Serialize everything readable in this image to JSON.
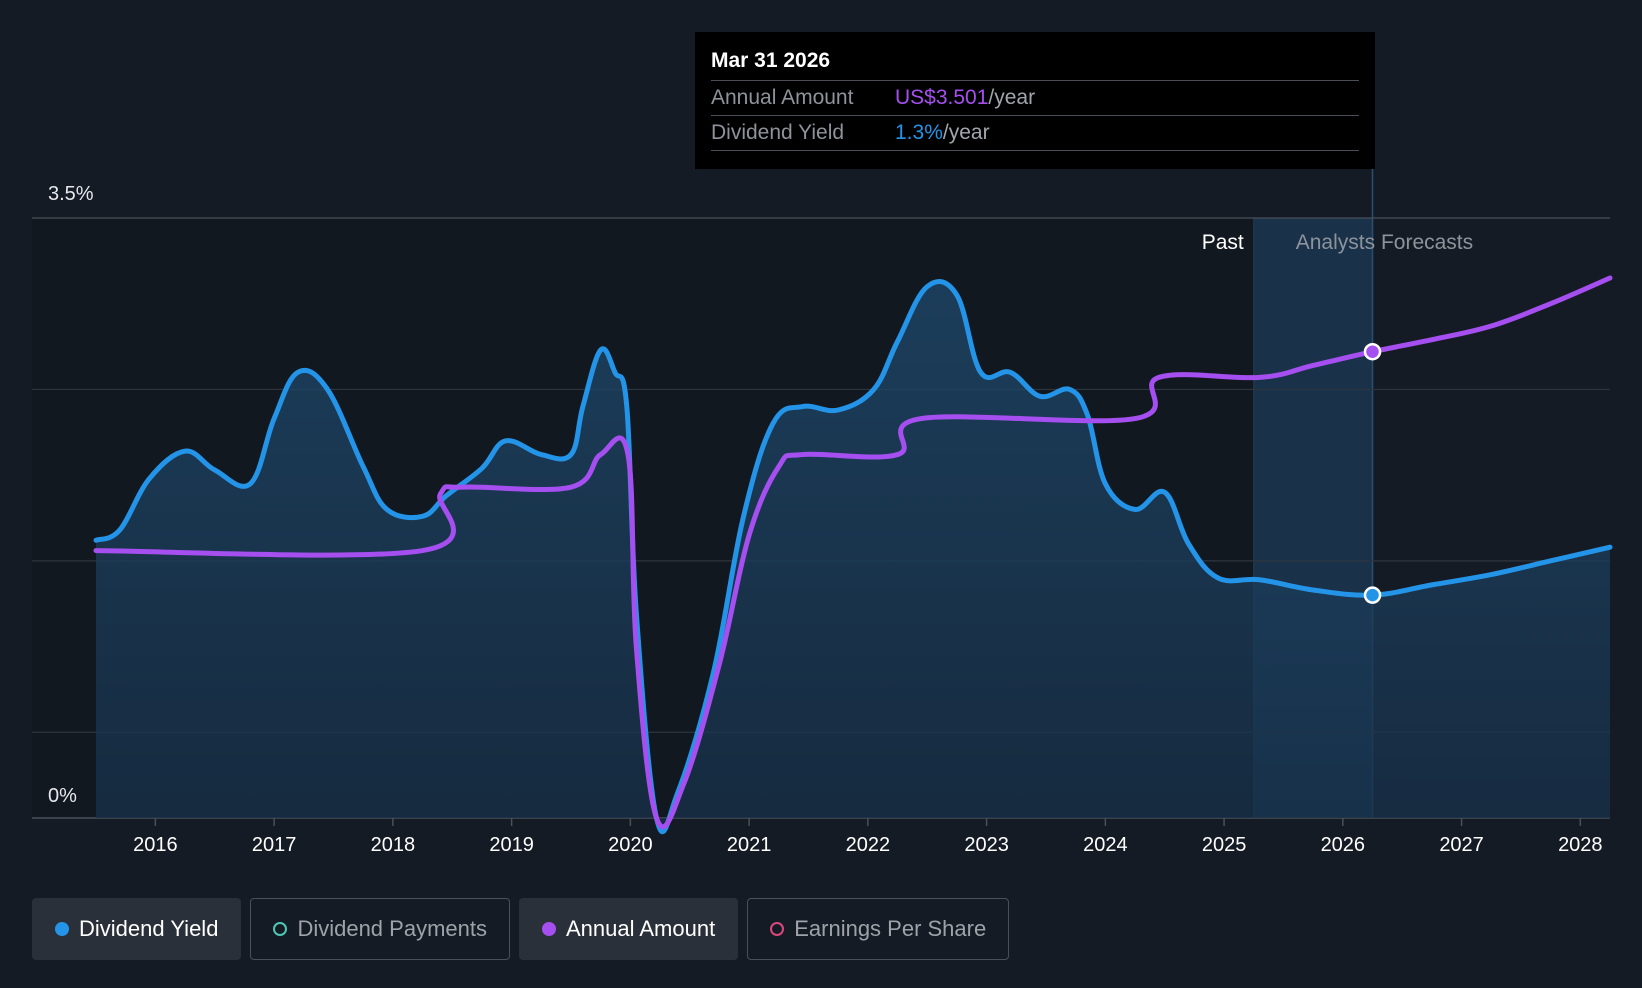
{
  "tooltip": {
    "date": "Mar 31 2026",
    "rows": [
      {
        "label": "Annual Amount",
        "value": "US$3.501",
        "unit": "/year"
      },
      {
        "label": "Dividend Yield",
        "value": "1.3%",
        "unit": "/year"
      }
    ]
  },
  "regions": {
    "past_label": "Past",
    "forecast_label": "Analysts Forecasts"
  },
  "legend": [
    {
      "label": "Dividend Yield",
      "color": "#2394e8",
      "active": true
    },
    {
      "label": "Dividend Payments",
      "color": "#4ec6b4",
      "active": false
    },
    {
      "label": "Annual Amount",
      "color": "#a64ff0",
      "active": true
    },
    {
      "label": "Earnings Per Share",
      "color": "#d9487c",
      "active": false
    }
  ],
  "chart_data": {
    "type": "line",
    "y_axis": {
      "top_label": "3.5%",
      "bottom_label": "0%",
      "ylim": [
        0,
        3.5
      ]
    },
    "x_tick_labels": [
      "2016",
      "2017",
      "2018",
      "2019",
      "2020",
      "2021",
      "2022",
      "2023",
      "2024",
      "2025",
      "2026",
      "2027",
      "2028"
    ],
    "x_range": [
      2015.5,
      2028.25
    ],
    "past_forecast_boundary": 2025.25,
    "highlight": {
      "x": 2026.25,
      "label": "Mar 31 2026"
    },
    "grid": true,
    "series": [
      {
        "name": "Dividend Yield",
        "color": "#2394e8",
        "fill": true,
        "marker_at": 2026.25,
        "points": [
          [
            2015.5,
            1.62
          ],
          [
            2015.7,
            1.68
          ],
          [
            2015.95,
            1.98
          ],
          [
            2016.25,
            2.14
          ],
          [
            2016.5,
            2.03
          ],
          [
            2016.8,
            1.95
          ],
          [
            2017.0,
            2.33
          ],
          [
            2017.2,
            2.6
          ],
          [
            2017.45,
            2.5
          ],
          [
            2017.75,
            2.05
          ],
          [
            2017.95,
            1.8
          ],
          [
            2018.25,
            1.76
          ],
          [
            2018.45,
            1.88
          ],
          [
            2018.75,
            2.04
          ],
          [
            2018.95,
            2.2
          ],
          [
            2019.25,
            2.12
          ],
          [
            2019.5,
            2.12
          ],
          [
            2019.6,
            2.4
          ],
          [
            2019.75,
            2.73
          ],
          [
            2019.87,
            2.6
          ],
          [
            2019.97,
            2.4
          ],
          [
            2020.05,
            1.2
          ],
          [
            2020.22,
            0.0
          ],
          [
            2020.4,
            0.15
          ],
          [
            2020.7,
            0.85
          ],
          [
            2020.95,
            1.75
          ],
          [
            2021.2,
            2.3
          ],
          [
            2021.45,
            2.4
          ],
          [
            2021.75,
            2.38
          ],
          [
            2022.05,
            2.5
          ],
          [
            2022.25,
            2.78
          ],
          [
            2022.5,
            3.1
          ],
          [
            2022.75,
            3.05
          ],
          [
            2022.95,
            2.6
          ],
          [
            2023.2,
            2.6
          ],
          [
            2023.45,
            2.46
          ],
          [
            2023.7,
            2.5
          ],
          [
            2023.85,
            2.35
          ],
          [
            2024.0,
            1.95
          ],
          [
            2024.25,
            1.8
          ],
          [
            2024.5,
            1.9
          ],
          [
            2024.7,
            1.6
          ],
          [
            2024.95,
            1.4
          ],
          [
            2025.3,
            1.39
          ],
          [
            2025.75,
            1.33
          ],
          [
            2026.25,
            1.3
          ],
          [
            2026.75,
            1.36
          ],
          [
            2027.25,
            1.42
          ],
          [
            2027.75,
            1.5
          ],
          [
            2028.25,
            1.58
          ]
        ]
      },
      {
        "name": "Annual Amount",
        "color": "#a64ff0",
        "fill": false,
        "marker_at": 2026.25,
        "points": [
          [
            2015.5,
            1.56
          ],
          [
            2018.25,
            1.56
          ],
          [
            2018.4,
            1.89
          ],
          [
            2018.6,
            1.93
          ],
          [
            2019.5,
            1.93
          ],
          [
            2019.75,
            2.12
          ],
          [
            2019.98,
            2.12
          ],
          [
            2020.05,
            1.0
          ],
          [
            2020.22,
            0.0
          ],
          [
            2020.45,
            0.2
          ],
          [
            2020.75,
            0.9
          ],
          [
            2021.0,
            1.65
          ],
          [
            2021.25,
            2.05
          ],
          [
            2021.45,
            2.12
          ],
          [
            2022.25,
            2.12
          ],
          [
            2022.45,
            2.33
          ],
          [
            2024.25,
            2.33
          ],
          [
            2024.45,
            2.57
          ],
          [
            2025.3,
            2.57
          ],
          [
            2025.75,
            2.64
          ],
          [
            2026.25,
            2.72
          ],
          [
            2026.75,
            2.79
          ],
          [
            2027.25,
            2.87
          ],
          [
            2027.75,
            3.0
          ],
          [
            2028.25,
            3.15
          ]
        ]
      }
    ]
  }
}
